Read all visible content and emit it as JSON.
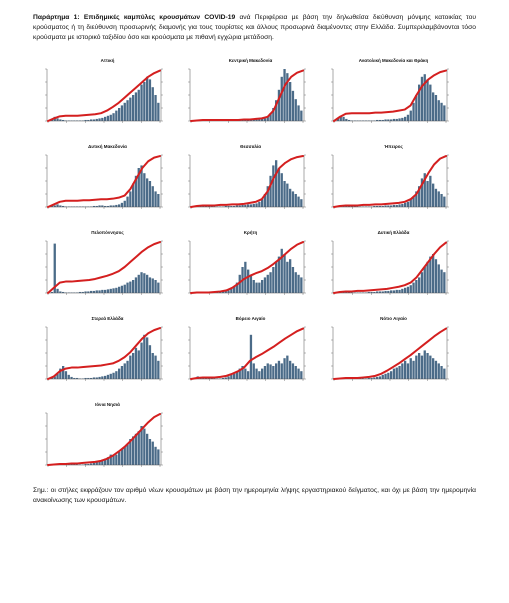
{
  "header": {
    "title_bold": "Παράρτημα 1: Επιδημικές καμπύλες κρουσμάτων COVID-19",
    "title_rest": " ανά Περιφέρεια με βάση την δηλωθείσα διεύθυνση μόνιμης κατοικίας του κρούσματος ή τη διεύθυνση προσωρινής διαμονής για τους τουρίστες και άλλους προσωρινά διαμένοντες στην Ελλάδα. Συμπεριλαμβάνονται τόσο κρούσματα με ιστορικό ταξιδίου όσο και κρούσματα με πιθανή εγχώρια μετάδοση."
  },
  "note": "Σημ.: οι στήλες εκφράζουν τον αριθμό νέων κρουσμάτων με βάση την ημερομηνία λήψης εργαστηριακού δείγματος, και όχι με βάση την ημερομηνία ανακοίνωσης των κρουσμάτων.",
  "colors": {
    "bars": "#4b6b88",
    "line": "#d41f1f",
    "axis": "#555555"
  },
  "chart_data": [
    {
      "type": "bar",
      "title": "Αττική",
      "bar_values": [
        0,
        0.04,
        0.08,
        0.05,
        0.03,
        0.02,
        0.01,
        0.01,
        0.01,
        0.01,
        0.01,
        0.01,
        0.01,
        0.02,
        0.02,
        0.03,
        0.03,
        0.04,
        0.05,
        0.06,
        0.08,
        0.1,
        0.12,
        0.15,
        0.2,
        0.25,
        0.3,
        0.35,
        0.4,
        0.45,
        0.5,
        0.55,
        0.6,
        0.7,
        0.75,
        0.85,
        0.8,
        0.65,
        0.5,
        0.35
      ],
      "line_values": [
        0,
        0.05,
        0.09,
        0.1,
        0.1,
        0.1,
        0.11,
        0.12,
        0.13,
        0.15,
        0.2,
        0.27,
        0.35,
        0.45,
        0.55,
        0.65,
        0.75,
        0.85,
        0.92,
        0.97
      ]
    },
    {
      "type": "bar",
      "title": "Κεντρική Μακεδονία",
      "bar_values": [
        0,
        0.01,
        0.02,
        0.01,
        0.01,
        0.01,
        0.01,
        0.01,
        0.01,
        0.01,
        0.01,
        0.01,
        0.01,
        0.01,
        0.01,
        0.01,
        0.01,
        0.01,
        0.02,
        0.02,
        0.02,
        0.02,
        0.02,
        0.03,
        0.03,
        0.04,
        0.05,
        0.08,
        0.15,
        0.25,
        0.4,
        0.6,
        0.85,
        1.0,
        0.92,
        0.75,
        0.58,
        0.42,
        0.3,
        0.2
      ],
      "line_values": [
        0,
        0.01,
        0.02,
        0.02,
        0.02,
        0.02,
        0.02,
        0.02,
        0.02,
        0.03,
        0.03,
        0.04,
        0.05,
        0.08,
        0.2,
        0.45,
        0.7,
        0.85,
        0.93,
        0.97
      ]
    },
    {
      "type": "bar",
      "title": "Ανατολική Μακεδονία και Θράκη",
      "bar_values": [
        0,
        0.06,
        0.1,
        0.08,
        0.04,
        0.02,
        0.01,
        0.01,
        0.01,
        0.01,
        0.01,
        0.01,
        0.01,
        0.01,
        0.01,
        0.02,
        0.02,
        0.02,
        0.03,
        0.03,
        0.03,
        0.04,
        0.04,
        0.05,
        0.06,
        0.08,
        0.12,
        0.2,
        0.35,
        0.5,
        0.7,
        0.85,
        0.9,
        0.8,
        0.7,
        0.55,
        0.5,
        0.4,
        0.35,
        0.3
      ],
      "line_values": [
        0,
        0.08,
        0.14,
        0.15,
        0.15,
        0.15,
        0.15,
        0.16,
        0.16,
        0.17,
        0.18,
        0.2,
        0.22,
        0.3,
        0.5,
        0.68,
        0.8,
        0.88,
        0.94,
        0.97
      ]
    },
    {
      "type": "bar",
      "title": "Δυτική Μακεδονία",
      "bar_values": [
        0,
        0.02,
        0.03,
        0.05,
        0.03,
        0.02,
        0.01,
        0.01,
        0.01,
        0.01,
        0.01,
        0.01,
        0.01,
        0.01,
        0.01,
        0.01,
        0.02,
        0.02,
        0.03,
        0.03,
        0.02,
        0.02,
        0.03,
        0.03,
        0.04,
        0.05,
        0.08,
        0.12,
        0.2,
        0.3,
        0.45,
        0.6,
        0.75,
        0.8,
        0.65,
        0.55,
        0.5,
        0.4,
        0.3,
        0.25
      ],
      "line_values": [
        0,
        0.05,
        0.1,
        0.12,
        0.12,
        0.12,
        0.13,
        0.13,
        0.14,
        0.15,
        0.15,
        0.16,
        0.18,
        0.22,
        0.35,
        0.55,
        0.75,
        0.88,
        0.95,
        0.98
      ]
    },
    {
      "type": "bar",
      "title": "Θεσσαλία",
      "bar_values": [
        0,
        0.01,
        0.02,
        0.01,
        0.01,
        0.01,
        0.01,
        0.01,
        0.01,
        0.01,
        0.01,
        0.01,
        0.02,
        0.02,
        0.02,
        0.02,
        0.03,
        0.03,
        0.04,
        0.04,
        0.05,
        0.05,
        0.06,
        0.07,
        0.1,
        0.15,
        0.25,
        0.4,
        0.6,
        0.8,
        0.9,
        0.75,
        0.65,
        0.5,
        0.45,
        0.35,
        0.3,
        0.25,
        0.2,
        0.15
      ],
      "line_values": [
        0,
        0.02,
        0.03,
        0.03,
        0.03,
        0.04,
        0.04,
        0.05,
        0.05,
        0.06,
        0.08,
        0.1,
        0.15,
        0.3,
        0.55,
        0.75,
        0.85,
        0.92,
        0.96,
        0.98
      ]
    },
    {
      "type": "bar",
      "title": "Ήπειρος",
      "bar_values": [
        0,
        0.01,
        0.02,
        0.01,
        0.01,
        0.01,
        0.01,
        0.01,
        0.01,
        0.01,
        0.01,
        0.01,
        0.01,
        0.01,
        0.02,
        0.02,
        0.02,
        0.02,
        0.03,
        0.03,
        0.03,
        0.04,
        0.04,
        0.05,
        0.06,
        0.08,
        0.1,
        0.15,
        0.2,
        0.3,
        0.4,
        0.55,
        0.65,
        0.5,
        0.6,
        0.45,
        0.35,
        0.3,
        0.25,
        0.2
      ],
      "line_values": [
        0,
        0.02,
        0.03,
        0.03,
        0.03,
        0.04,
        0.04,
        0.05,
        0.05,
        0.06,
        0.07,
        0.08,
        0.1,
        0.15,
        0.25,
        0.45,
        0.65,
        0.82,
        0.93,
        0.98
      ]
    },
    {
      "type": "bar",
      "title": "Πελοπόννησος",
      "bar_values": [
        0,
        0.02,
        0.95,
        0.08,
        0.03,
        0.02,
        0.01,
        0.01,
        0.01,
        0.01,
        0.01,
        0.02,
        0.02,
        0.03,
        0.03,
        0.04,
        0.04,
        0.05,
        0.05,
        0.06,
        0.06,
        0.07,
        0.08,
        0.09,
        0.1,
        0.12,
        0.14,
        0.16,
        0.2,
        0.22,
        0.25,
        0.3,
        0.35,
        0.4,
        0.38,
        0.35,
        0.3,
        0.28,
        0.25,
        0.2
      ],
      "line_values": [
        0,
        0.1,
        0.2,
        0.22,
        0.22,
        0.23,
        0.24,
        0.25,
        0.27,
        0.3,
        0.33,
        0.37,
        0.42,
        0.5,
        0.6,
        0.7,
        0.8,
        0.88,
        0.94,
        0.98
      ]
    },
    {
      "type": "bar",
      "title": "Κρήτη",
      "bar_values": [
        0,
        0.01,
        0.01,
        0.01,
        0.01,
        0.01,
        0.01,
        0.01,
        0.01,
        0.02,
        0.02,
        0.03,
        0.04,
        0.05,
        0.08,
        0.12,
        0.2,
        0.35,
        0.5,
        0.6,
        0.45,
        0.35,
        0.25,
        0.2,
        0.2,
        0.25,
        0.3,
        0.35,
        0.4,
        0.5,
        0.6,
        0.7,
        0.85,
        0.75,
        0.6,
        0.65,
        0.5,
        0.4,
        0.35,
        0.3
      ],
      "line_values": [
        0,
        0.01,
        0.01,
        0.01,
        0.02,
        0.03,
        0.05,
        0.1,
        0.18,
        0.27,
        0.33,
        0.38,
        0.42,
        0.48,
        0.56,
        0.65,
        0.75,
        0.85,
        0.93,
        0.98
      ]
    },
    {
      "type": "bar",
      "title": "Δυτική Ελλάδα",
      "bar_values": [
        0,
        0.01,
        0.02,
        0.01,
        0.01,
        0.01,
        0.01,
        0.01,
        0.01,
        0.01,
        0.01,
        0.01,
        0.02,
        0.02,
        0.02,
        0.03,
        0.03,
        0.03,
        0.04,
        0.04,
        0.05,
        0.05,
        0.06,
        0.06,
        0.08,
        0.1,
        0.12,
        0.15,
        0.2,
        0.25,
        0.3,
        0.4,
        0.5,
        0.6,
        0.7,
        0.75,
        0.65,
        0.55,
        0.45,
        0.4
      ],
      "line_values": [
        0,
        0.02,
        0.03,
        0.03,
        0.04,
        0.04,
        0.05,
        0.06,
        0.07,
        0.08,
        0.1,
        0.12,
        0.15,
        0.2,
        0.3,
        0.45,
        0.6,
        0.75,
        0.88,
        0.97
      ]
    },
    {
      "type": "bar",
      "title": "Στερεά Ελλάδα",
      "bar_values": [
        0,
        0.02,
        0.05,
        0.1,
        0.2,
        0.25,
        0.15,
        0.08,
        0.04,
        0.02,
        0.02,
        0.01,
        0.01,
        0.02,
        0.02,
        0.02,
        0.03,
        0.03,
        0.04,
        0.05,
        0.06,
        0.08,
        0.1,
        0.12,
        0.15,
        0.2,
        0.25,
        0.3,
        0.35,
        0.45,
        0.5,
        0.6,
        0.55,
        0.7,
        0.85,
        0.8,
        0.65,
        0.5,
        0.45,
        0.35
      ],
      "line_values": [
        0,
        0.05,
        0.15,
        0.2,
        0.22,
        0.22,
        0.23,
        0.24,
        0.25,
        0.26,
        0.28,
        0.3,
        0.35,
        0.42,
        0.52,
        0.65,
        0.78,
        0.88,
        0.94,
        0.98
      ]
    },
    {
      "type": "bar",
      "title": "Βόρειο Αιγαίο",
      "bar_values": [
        0,
        0.02,
        0.05,
        0.03,
        0.02,
        0.01,
        0.01,
        0.01,
        0.01,
        0.01,
        0.01,
        0.02,
        0.03,
        0.05,
        0.08,
        0.1,
        0.15,
        0.2,
        0.25,
        0.2,
        0.15,
        0.85,
        0.3,
        0.2,
        0.15,
        0.2,
        0.25,
        0.3,
        0.28,
        0.25,
        0.3,
        0.35,
        0.3,
        0.4,
        0.45,
        0.35,
        0.3,
        0.25,
        0.2,
        0.15
      ],
      "line_values": [
        0,
        0.02,
        0.03,
        0.03,
        0.03,
        0.04,
        0.06,
        0.1,
        0.15,
        0.22,
        0.35,
        0.42,
        0.48,
        0.55,
        0.62,
        0.7,
        0.78,
        0.85,
        0.92,
        0.97
      ]
    },
    {
      "type": "bar",
      "title": "Νότιο Αιγαίο",
      "bar_values": [
        0,
        0.01,
        0.02,
        0.01,
        0.01,
        0.01,
        0.01,
        0.01,
        0.01,
        0.01,
        0.01,
        0.01,
        0.02,
        0.02,
        0.03,
        0.04,
        0.05,
        0.08,
        0.1,
        0.12,
        0.15,
        0.2,
        0.22,
        0.25,
        0.3,
        0.35,
        0.3,
        0.4,
        0.35,
        0.45,
        0.5,
        0.45,
        0.55,
        0.5,
        0.45,
        0.4,
        0.35,
        0.3,
        0.25,
        0.2
      ],
      "line_values": [
        0,
        0.01,
        0.02,
        0.02,
        0.02,
        0.03,
        0.04,
        0.06,
        0.1,
        0.16,
        0.23,
        0.3,
        0.38,
        0.46,
        0.55,
        0.64,
        0.73,
        0.82,
        0.9,
        0.97
      ]
    },
    {
      "type": "bar",
      "title": "Ιόνια Νησιά",
      "bar_values": [
        0,
        0.01,
        0.02,
        0.02,
        0.01,
        0.01,
        0.01,
        0.01,
        0.01,
        0.01,
        0.01,
        0.01,
        0.01,
        0.02,
        0.02,
        0.03,
        0.04,
        0.06,
        0.08,
        0.1,
        0.12,
        0.15,
        0.2,
        0.18,
        0.2,
        0.25,
        0.3,
        0.35,
        0.4,
        0.5,
        0.55,
        0.6,
        0.65,
        0.75,
        0.7,
        0.6,
        0.5,
        0.45,
        0.35,
        0.3
      ],
      "line_values": [
        0,
        0.01,
        0.02,
        0.02,
        0.03,
        0.03,
        0.04,
        0.05,
        0.06,
        0.08,
        0.12,
        0.18,
        0.26,
        0.35,
        0.46,
        0.58,
        0.7,
        0.82,
        0.92,
        0.98
      ]
    }
  ]
}
